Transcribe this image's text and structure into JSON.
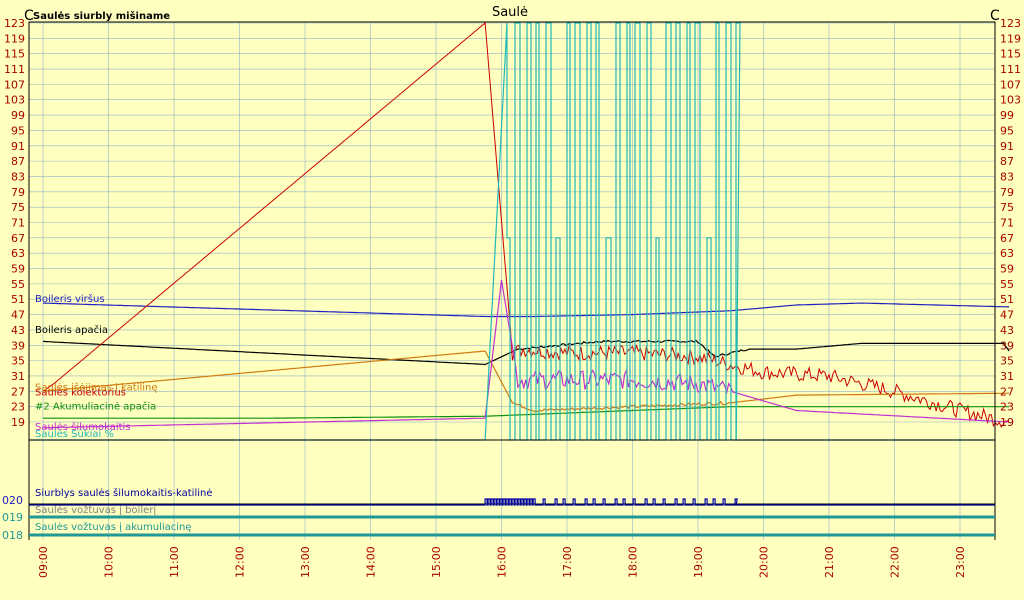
{
  "chart_data": {
    "type": "line",
    "title": "Saulė",
    "top_left_label": "Saulės siurbly mišiname",
    "unit_left": "C",
    "unit_right": "C",
    "ylim": [
      19,
      123
    ],
    "y_ticks": [
      123,
      119,
      115,
      111,
      107,
      103,
      99,
      95,
      91,
      87,
      83,
      79,
      75,
      71,
      67,
      63,
      59,
      55,
      51,
      47,
      43,
      39,
      35,
      31,
      27,
      23,
      19
    ],
    "x_ticks": [
      "09:00",
      "10:00",
      "11:00",
      "12:00",
      "13:00",
      "14:00",
      "15:00",
      "16:00",
      "17:00",
      "18:00",
      "19:00",
      "20:00",
      "21:00",
      "22:00",
      "23:00"
    ],
    "grid": true,
    "colors": {
      "background": "#ffffc0",
      "grid": "#8fb4c4",
      "tick_label": "#a80000",
      "red": "#cc0000",
      "orange": "#d07a10",
      "blue": "#2020c0",
      "black": "#000000",
      "green": "#109010",
      "magenta": "#c030d0",
      "violet": "#9040e0",
      "cyan": "#20b8b8",
      "navy": "#0000a0",
      "teal": "#209898"
    },
    "series": [
      {
        "name": "Boileris viršus",
        "color": "#2020c0",
        "x": [
          "09:00",
          "15:45",
          "16:30",
          "18:00",
          "19:30",
          "20:30",
          "21:30",
          "23:45"
        ],
        "y": [
          50,
          46.5,
          46.5,
          47,
          48,
          49.5,
          50,
          49
        ]
      },
      {
        "name": "Boileris apačia",
        "color": "#000000",
        "x": [
          "09:00",
          "15:45",
          "16:15",
          "17:30",
          "18:00",
          "19:00",
          "19:15",
          "19:45",
          "20:30",
          "21:30",
          "23:40",
          "23:45"
        ],
        "y": [
          40,
          34,
          38,
          40,
          40,
          40,
          36,
          38,
          38,
          39.5,
          39.5,
          37.5
        ]
      },
      {
        "name": "Saulės kolektorius",
        "color": "#cc0000",
        "x": [
          "09:00",
          "09:10",
          "15:45",
          "16:10",
          "16:20",
          "17:00",
          "18:00",
          "19:00",
          "19:30",
          "20:00",
          "21:00",
          "22:00",
          "23:00",
          "23:45"
        ],
        "y": [
          27,
          29,
          123,
          37,
          38,
          37,
          37,
          36,
          34,
          32,
          31,
          27,
          22,
          19
        ]
      },
      {
        "name": "Saulės išėjimas į katilinę",
        "color": "#d07a10",
        "x": [
          "09:00",
          "15:45",
          "16:10",
          "16:30",
          "18:00",
          "19:30",
          "20:30",
          "23:45"
        ],
        "y": [
          27,
          37.5,
          24,
          22,
          23,
          24,
          26,
          26.5
        ]
      },
      {
        "name": "#2 Akumuliacinė apačia",
        "color": "#109010",
        "x": [
          "09:00",
          "12:30",
          "15:45",
          "16:30",
          "18:00",
          "19:30",
          "20:30",
          "23:45"
        ],
        "y": [
          20,
          20,
          20.5,
          21,
          22,
          23,
          23,
          23
        ]
      },
      {
        "name": "Saulės šilumokaitis",
        "color": "#c030d0",
        "x": [
          "09:00",
          "15:45",
          "16:00",
          "16:15",
          "17:00",
          "18:00",
          "19:00",
          "19:30",
          "20:30",
          "23:45"
        ],
        "y": [
          17.5,
          20,
          56,
          30,
          30,
          30,
          29,
          27,
          22,
          19
        ]
      },
      {
        "name": "Saulės Sūkiai %",
        "color": "#20b8b8",
        "x": [
          "09:00",
          "15:45",
          "16:05",
          "19:35",
          "19:40",
          "23:45"
        ],
        "y": [
          15,
          15,
          123,
          123,
          15,
          15
        ]
      }
    ],
    "channels": [
      {
        "id": "020",
        "name": "Siurblys saulės šilumokaitis-katilinė",
        "color": "#0000a0"
      },
      {
        "id": "019",
        "name": "Saulės vožtuvas į boilerį",
        "color": "#209898"
      },
      {
        "id": "018",
        "name": "Saulės vožtuvas į akumuliacinę",
        "color": "#209898"
      }
    ]
  }
}
